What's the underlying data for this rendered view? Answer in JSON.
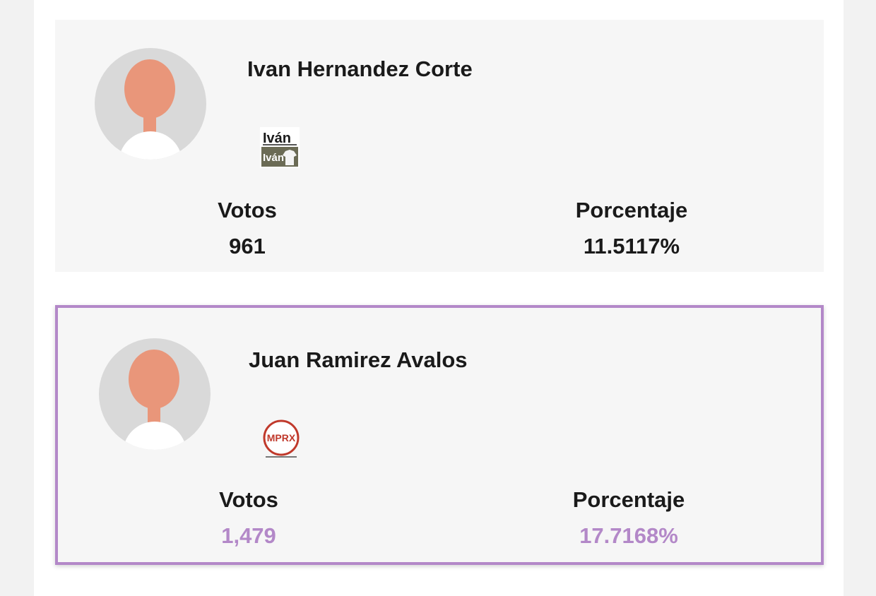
{
  "candidates": [
    {
      "name": "Ivan Hernandez Corte",
      "logo_icon": "ivan-party-logo-icon",
      "votes_label": "Votos",
      "votes": "961",
      "percent_label": "Porcentaje",
      "percent": "11.5117%",
      "logo_text_top": "Iván",
      "logo_text_bottom": "Iván"
    },
    {
      "name": "Juan Ramirez Avalos",
      "logo_icon": "mprx-party-logo-icon",
      "votes_label": "Votos",
      "votes": "1,479",
      "percent_label": "Porcentaje",
      "percent": "17.7168%",
      "logo_text": "MPRX",
      "highlight_color": "#b388c8"
    }
  ],
  "colors": {
    "accent": "#b388c8",
    "card_bg": "#f6f6f6",
    "avatar_bg": "#d9d9d9",
    "avatar_skin": "#e9967a"
  }
}
